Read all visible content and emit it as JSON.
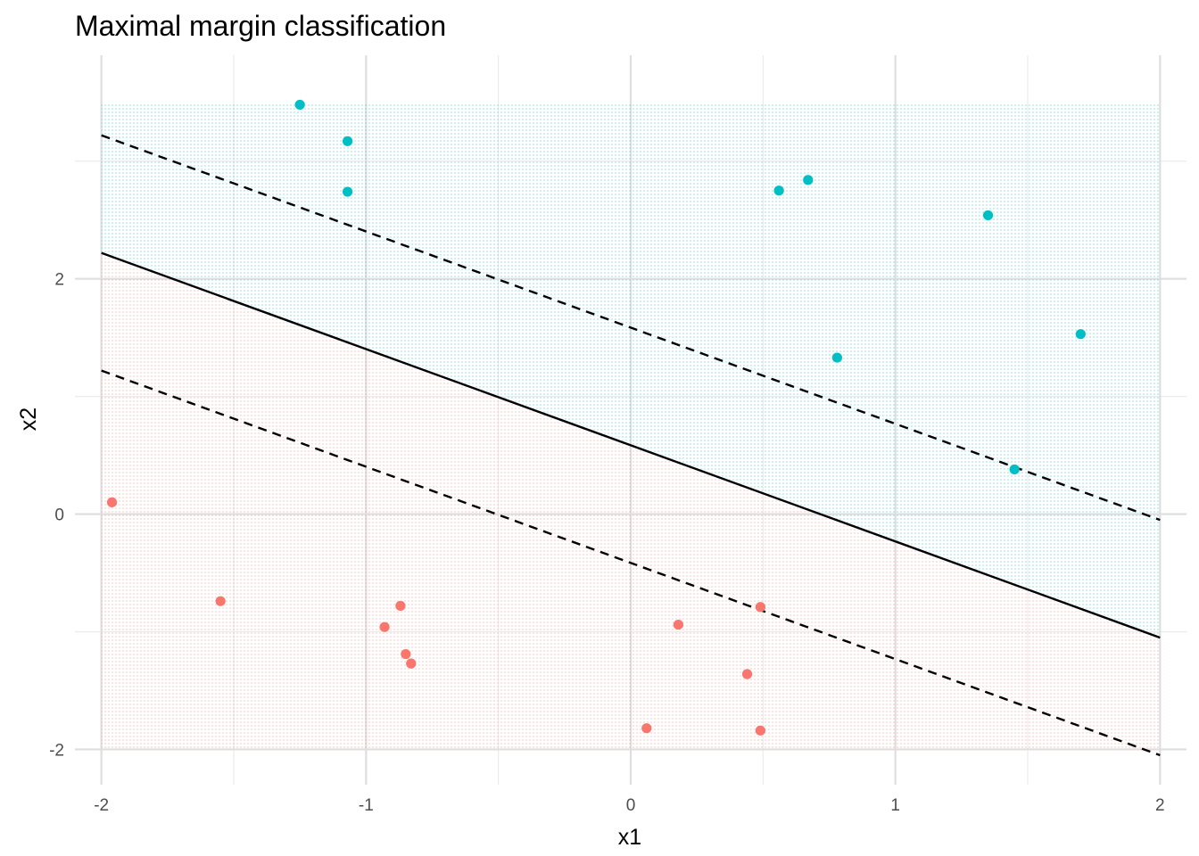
{
  "chart_data": {
    "type": "scatter",
    "title": "Maximal margin classification",
    "xlabel": "x1",
    "ylabel": "x2",
    "xlim": [
      -2.1,
      2.1
    ],
    "ylim": [
      -2.3,
      3.9
    ],
    "x_ticks": [
      -2,
      -1,
      0,
      1,
      2
    ],
    "x_tick_labels": [
      "-2",
      "-1",
      "0",
      "1",
      "2"
    ],
    "y_ticks": [
      -2,
      0,
      2
    ],
    "y_tick_labels": [
      "-2",
      "0",
      "2"
    ],
    "x_minor_grid": [
      -1.5,
      -0.5,
      0.5,
      1.5
    ],
    "y_minor_grid": [
      -1,
      1,
      3
    ],
    "grid": true,
    "legend": "none",
    "background_grid_region": {
      "x": [
        -2,
        2
      ],
      "y": [
        -2,
        3.5
      ]
    },
    "colors": {
      "class_a": "#F8766D",
      "class_b": "#00BFC4"
    },
    "series": [
      {
        "color": "#F8766D",
        "points": [
          [
            -1.96,
            0.1
          ],
          [
            -1.55,
            -0.74
          ],
          [
            -0.87,
            -0.78
          ],
          [
            -0.93,
            -0.96
          ],
          [
            -0.85,
            -1.19
          ],
          [
            -0.83,
            -1.27
          ],
          [
            0.18,
            -0.94
          ],
          [
            0.49,
            -0.79
          ],
          [
            0.44,
            -1.36
          ],
          [
            0.06,
            -1.82
          ],
          [
            0.49,
            -1.84
          ]
        ]
      },
      {
        "color": "#00BFC4",
        "points": [
          [
            -1.25,
            3.48
          ],
          [
            -1.07,
            3.17
          ],
          [
            -1.07,
            2.74
          ],
          [
            0.56,
            2.75
          ],
          [
            0.67,
            2.84
          ],
          [
            1.35,
            2.54
          ],
          [
            1.7,
            1.53
          ],
          [
            0.78,
            1.33
          ],
          [
            1.45,
            0.38
          ]
        ]
      }
    ],
    "lines": [
      {
        "style": "solid",
        "x": [
          -2,
          2
        ],
        "y": [
          2.22,
          -1.05
        ]
      },
      {
        "style": "dashed",
        "x": [
          -2,
          2
        ],
        "y": [
          3.22,
          -0.05
        ]
      },
      {
        "style": "dashed",
        "x": [
          -2,
          2
        ],
        "y": [
          1.22,
          -2.05
        ]
      }
    ]
  }
}
